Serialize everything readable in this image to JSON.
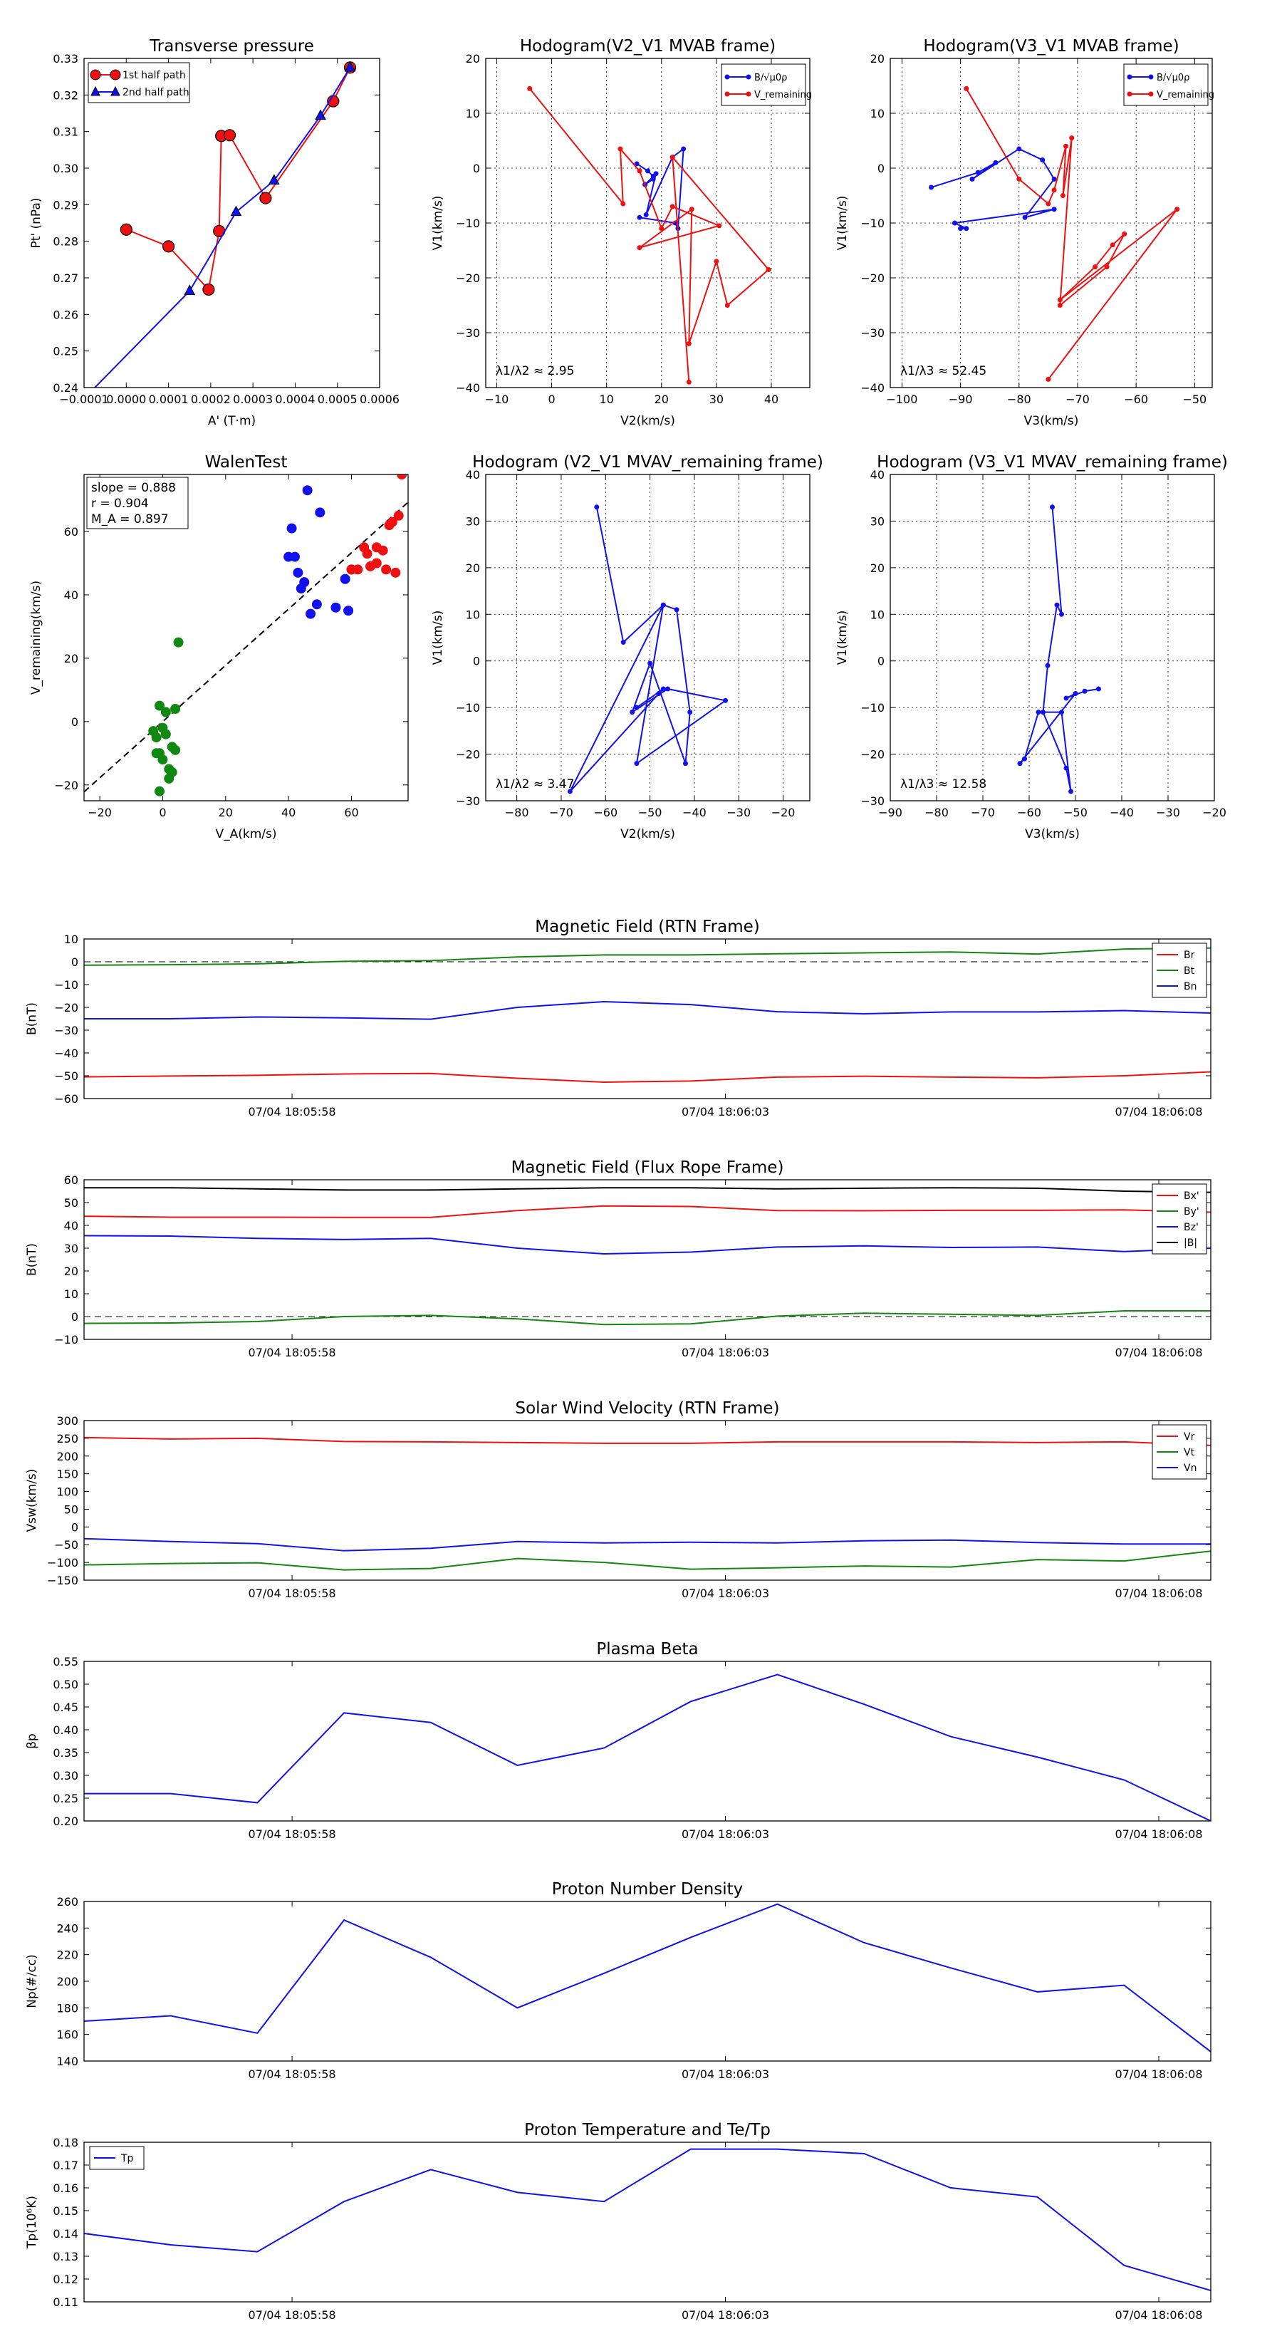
{
  "colors": {
    "red": "#ee1111",
    "blue": "#1111ee",
    "green": "#118811",
    "black": "#000000"
  },
  "time_ticks": [
    "07/04 18:05:58",
    "07/04 18:06:03",
    "07/04 18:06:08"
  ],
  "chart_data": [
    {
      "id": "pt",
      "type": "scatter",
      "title": "Transverse pressure",
      "xlabel": "A' (T·m)",
      "ylabel": "Pt' (nPa)",
      "xlim": [
        -0.0001,
        0.0006
      ],
      "ylim": [
        0.24,
        0.33
      ],
      "xticks": [
        -0.0001,
        0,
        0.0001,
        0.0002,
        0.0003,
        0.0004,
        0.0005,
        0.0006
      ],
      "xtick_labels": [
        "−0.0001",
        "0.0000",
        "0.0001",
        "0.0002",
        "0.0003",
        "0.0004",
        "0.0005",
        "0.0006"
      ],
      "yticks": [
        0.24,
        0.25,
        0.26,
        0.27,
        0.28,
        0.29,
        0.3,
        0.31,
        0.32,
        0.33
      ],
      "ytick_labels": [
        "0.24",
        "0.25",
        "0.26",
        "0.27",
        "0.28",
        "0.29",
        "0.30",
        "0.31",
        "0.32",
        "0.33"
      ],
      "legend": [
        "1st half path",
        "2nd half path"
      ],
      "series": [
        {
          "name": "1st half path",
          "color": "red",
          "marker": "circle",
          "x": [
            0.0,
            0.0001,
            0.000195,
            0.00022,
            0.000225,
            0.000245,
            0.00033,
            0.00049,
            0.00053
          ],
          "y": [
            0.2832,
            0.2786,
            0.2668,
            0.2828,
            0.3088,
            0.309,
            0.2918,
            0.3183,
            0.3275
          ]
        },
        {
          "name": "2nd half path",
          "color": "blue",
          "marker": "triangle",
          "x": [
            -0.0001,
            0.00015,
            0.00026,
            0.00035,
            0.00046,
            0.00053
          ],
          "y": [
            0.237,
            0.2664,
            0.288,
            0.2966,
            0.3143,
            0.3275
          ]
        }
      ]
    },
    {
      "id": "h1",
      "type": "line",
      "title": "Hodogram(V2_V1 MVAB frame)",
      "xlabel": "V2(km/s)",
      "ylabel": "V1(km/s)",
      "xlim": [
        -12,
        47
      ],
      "ylim": [
        -40,
        20
      ],
      "xticks": [
        -10,
        0,
        10,
        20,
        30,
        40
      ],
      "yticks": [
        -40,
        -30,
        -20,
        -10,
        0,
        10,
        20
      ],
      "legend": [
        "B/√μ0ρ",
        "V_remaining"
      ],
      "annotation": "λ1/λ2 ≈ 2.95",
      "series": [
        {
          "name": "B",
          "color": "blue",
          "x": [
            15.5,
            17.5,
            18.5,
            17,
            18.5,
            19,
            17.2,
            22,
            24,
            23,
            22.5,
            16
          ],
          "y": [
            0.8,
            -0.5,
            -1.5,
            -3,
            -2,
            -1,
            -8.5,
            2,
            3.5,
            -11,
            -10,
            -9
          ]
        },
        {
          "name": "V",
          "color": "red",
          "x": [
            -4,
            13,
            12.5,
            16,
            20,
            22,
            30.5,
            16,
            25.5,
            25,
            30,
            32,
            39.5,
            22,
            25
          ],
          "y": [
            14.5,
            -6.5,
            3.5,
            -0.5,
            -11,
            -7,
            -10.5,
            -14.5,
            -7.5,
            -32,
            -17,
            -25,
            -18.5,
            2,
            -39
          ]
        }
      ]
    },
    {
      "id": "h2",
      "type": "line",
      "title": "Hodogram(V3_V1 MVAB frame)",
      "xlabel": "V3(km/s)",
      "ylabel": "V1(km/s)",
      "xlim": [
        -102,
        -47
      ],
      "ylim": [
        -40,
        20
      ],
      "xticks": [
        -100,
        -90,
        -80,
        -70,
        -60,
        -50
      ],
      "yticks": [
        -40,
        -30,
        -20,
        -10,
        0,
        10,
        20
      ],
      "legend": [
        "B/√μ0ρ",
        "V_remaining"
      ],
      "annotation": "λ1/λ3 ≈ 52.45",
      "series": [
        {
          "name": "B",
          "color": "blue",
          "x": [
            -95,
            -87,
            -84,
            -88,
            -80,
            -76,
            -74,
            -79,
            -74,
            -91,
            -89,
            -90
          ],
          "y": [
            -3.5,
            -0.8,
            1,
            -2,
            3.5,
            1.5,
            -2,
            -9,
            -7.5,
            -10,
            -11,
            -11
          ]
        },
        {
          "name": "V",
          "color": "red",
          "x": [
            -89,
            -80,
            -75,
            -74,
            -72,
            -72.5,
            -71,
            -73,
            -65,
            -62,
            -64,
            -67,
            -73,
            -53,
            -75
          ],
          "y": [
            14.5,
            -2,
            -6.5,
            -4,
            4,
            -5,
            5.5,
            -25,
            -18,
            -12,
            -14,
            -18,
            -24,
            -7.5,
            -38.5
          ]
        }
      ]
    },
    {
      "id": "walen",
      "type": "scatter",
      "title": "WalenTest",
      "xlabel": "V_A(km/s)",
      "ylabel": "V_remaining(km/s)",
      "xlim": [
        -25,
        78
      ],
      "ylim": [
        -25,
        78
      ],
      "xticks": [
        -20,
        0,
        20,
        40,
        60
      ],
      "yticks": [
        -20,
        0,
        20,
        40,
        60
      ],
      "stats": {
        "slope": "slope = 0.888",
        "r": "r = 0.904",
        "ma": "M_A = 0.897"
      },
      "fit": {
        "slope": 0.888,
        "intercept": 0
      },
      "series": [
        {
          "name": "green",
          "color": "green",
          "x": [
            -1,
            0,
            1,
            3,
            5,
            4,
            -3,
            -2,
            -1,
            0,
            2,
            3,
            4,
            1,
            2,
            -1,
            -2
          ],
          "y": [
            5,
            -2,
            -4,
            -8,
            25,
            4,
            -3,
            -5,
            -10,
            -12,
            -15,
            -16,
            -9,
            3,
            -18,
            -22,
            -10
          ]
        },
        {
          "name": "blue",
          "color": "blue",
          "x": [
            41,
            43,
            45,
            46,
            47,
            49,
            50,
            55,
            58,
            59,
            40,
            42,
            44,
            60
          ],
          "y": [
            61,
            47,
            44,
            73,
            34,
            37,
            66,
            36,
            45,
            35,
            52,
            52,
            42,
            48
          ]
        },
        {
          "name": "red",
          "color": "red",
          "x": [
            60,
            64,
            66,
            68,
            70,
            72,
            73,
            74,
            75,
            76,
            62,
            65,
            68,
            71
          ],
          "y": [
            48,
            55,
            49,
            55,
            54,
            62,
            63,
            47,
            65,
            78,
            48,
            53,
            50,
            48
          ]
        }
      ]
    },
    {
      "id": "h3",
      "type": "line",
      "title": "Hodogram (V2_V1 MVAV_remaining frame)",
      "xlabel": "V2(km/s)",
      "ylabel": "V1(km/s)",
      "xlim": [
        -87,
        -14
      ],
      "ylim": [
        -30,
        40
      ],
      "xticks": [
        -80,
        -70,
        -60,
        -50,
        -40,
        -30,
        -20
      ],
      "yticks": [
        -30,
        -20,
        -10,
        0,
        10,
        20,
        30,
        40
      ],
      "annotation": "λ1/λ2 ≈ 3.47",
      "series": [
        {
          "name": "B",
          "color": "blue",
          "x": [
            -62,
            -56,
            -47,
            -44,
            -41,
            -42,
            -50,
            -54,
            -46,
            -33,
            -53,
            -47,
            -68,
            -48,
            -47,
            -53
          ],
          "y": [
            33,
            4,
            12,
            11,
            -11,
            -22,
            -0.5,
            -11,
            -6,
            -8.5,
            -22,
            12,
            -28,
            -7,
            -6,
            -10
          ]
        }
      ]
    },
    {
      "id": "h4",
      "type": "line",
      "title": "Hodogram (V3_V1 MVAV_remaining frame)",
      "xlabel": "V3(km/s)",
      "ylabel": "V1(km/s)",
      "xlim": [
        -90,
        -20
      ],
      "ylim": [
        -30,
        40
      ],
      "xticks": [
        -90,
        -80,
        -70,
        -60,
        -50,
        -40,
        -30,
        -20
      ],
      "yticks": [
        -30,
        -20,
        -10,
        0,
        10,
        20,
        30,
        40
      ],
      "annotation": "λ1/λ3 ≈ 12.58",
      "series": [
        {
          "name": "B",
          "color": "blue",
          "x": [
            -55,
            -53,
            -54,
            -56,
            -57,
            -52,
            -51,
            -53,
            -58,
            -61,
            -62,
            -50,
            -52,
            -48,
            -45
          ],
          "y": [
            33,
            10,
            12,
            -1,
            -11,
            -23,
            -28,
            -11,
            -11,
            -21,
            -22,
            -7,
            -8,
            -6.5,
            -6
          ]
        }
      ]
    },
    {
      "id": "bRTN",
      "type": "line",
      "title": "Magnetic Field (RTN Frame)",
      "ylabel": "B(nT)",
      "ylim": [
        -60,
        10
      ],
      "yticks": [
        -60,
        -50,
        -40,
        -30,
        -20,
        -10,
        0,
        10
      ],
      "zero_line": true,
      "legend_pos": "top-right",
      "series": [
        {
          "name": "Br",
          "color": "red",
          "values": [
            -50.5,
            -50.1,
            -49.8,
            -49.2,
            -49.0,
            -51.1,
            -52.8,
            -52.3,
            -50.6,
            -50.2,
            -50.6,
            -50.9,
            -50.0,
            -48.3
          ]
        },
        {
          "name": "Bt",
          "color": "green",
          "values": [
            -1.5,
            -1.3,
            -0.9,
            0.2,
            0.5,
            2.1,
            3.0,
            3.0,
            3.5,
            3.9,
            4.3,
            3.4,
            5.6,
            6.0
          ]
        },
        {
          "name": "Bn",
          "color": "blue",
          "values": [
            -25.0,
            -25.0,
            -24.2,
            -24.6,
            -25.2,
            -20.0,
            -17.5,
            -18.8,
            -21.9,
            -22.8,
            -22.0,
            -22.0,
            -21.4,
            -22.5
          ]
        }
      ]
    },
    {
      "id": "bFR",
      "type": "line",
      "title": "Magnetic Field (Flux Rope Frame)",
      "ylabel": "B(nT)",
      "ylim": [
        -10,
        60
      ],
      "yticks": [
        -10,
        0,
        10,
        20,
        30,
        40,
        50,
        60
      ],
      "zero_line": true,
      "legend_pos": "top-right",
      "series": [
        {
          "name": "Bx'",
          "color": "red",
          "values": [
            44,
            43.6,
            43.6,
            43.5,
            43.5,
            46.5,
            48.5,
            48.3,
            46.5,
            46.4,
            46.6,
            46.6,
            46.8,
            45.8
          ]
        },
        {
          "name": "By'",
          "color": "green",
          "values": [
            -3,
            -2.8,
            -2.2,
            0,
            0.5,
            -1,
            -3.5,
            -3.2,
            0.2,
            1.5,
            1,
            0.5,
            2.5,
            2.5
          ]
        },
        {
          "name": "Bz'",
          "color": "blue",
          "values": [
            35.5,
            35.3,
            34.3,
            33.8,
            34.3,
            30,
            27.5,
            28.3,
            30.5,
            31,
            30.3,
            30.5,
            28.5,
            30
          ]
        },
        {
          "name": "|B|",
          "color": "black",
          "values": [
            56.5,
            56.5,
            56,
            55.5,
            55.5,
            56,
            56.5,
            56.5,
            56,
            56.3,
            56.5,
            56.3,
            55,
            54.5
          ]
        }
      ]
    },
    {
      "id": "vsw",
      "type": "line",
      "title": "Solar Wind Velocity (RTN Frame)",
      "ylabel": "Vsw(km/s)",
      "ylim": [
        -150,
        300
      ],
      "yticks": [
        -150,
        -100,
        -50,
        0,
        50,
        100,
        150,
        200,
        250,
        300
      ],
      "legend_pos": "top-right",
      "series": [
        {
          "name": "Vr",
          "color": "red",
          "values": [
            252,
            248,
            250,
            241,
            240,
            238,
            236,
            236,
            240,
            240,
            240,
            238,
            240,
            230
          ]
        },
        {
          "name": "Vt",
          "color": "green",
          "values": [
            -107,
            -103,
            -101,
            -121,
            -117,
            -89,
            -100,
            -119,
            -115,
            -110,
            -113,
            -92,
            -96,
            -68
          ]
        },
        {
          "name": "Vn",
          "color": "blue",
          "values": [
            -33,
            -41,
            -47,
            -67,
            -60,
            -41,
            -45,
            -43,
            -45,
            -39,
            -37,
            -44,
            -48,
            -48
          ]
        }
      ]
    },
    {
      "id": "beta",
      "type": "line",
      "title": "Plasma Beta",
      "ylabel": "βp",
      "ylim": [
        0.2,
        0.55
      ],
      "yticks": [
        0.2,
        0.25,
        0.3,
        0.35,
        0.4,
        0.45,
        0.5,
        0.55
      ],
      "series": [
        {
          "name": "beta",
          "color": "blue",
          "values": [
            0.26,
            0.26,
            0.24,
            0.437,
            0.416,
            0.322,
            0.36,
            0.462,
            0.521,
            0.456,
            0.385,
            0.34,
            0.29,
            0.2
          ]
        }
      ]
    },
    {
      "id": "np",
      "type": "line",
      "title": "Proton Number Density",
      "ylabel": "Np(#/cc)",
      "ylim": [
        140,
        260
      ],
      "yticks": [
        140,
        160,
        180,
        200,
        220,
        240,
        260
      ],
      "series": [
        {
          "name": "Np",
          "color": "blue",
          "values": [
            170,
            174,
            161,
            246,
            218,
            180,
            206,
            233,
            258,
            229,
            210,
            192,
            197,
            147
          ]
        }
      ]
    },
    {
      "id": "tp",
      "type": "line",
      "title": "Proton Temperature and Te/Tp",
      "ylabel": "Tp(10⁶K)",
      "ylim": [
        0.11,
        0.18
      ],
      "yticks": [
        0.11,
        0.12,
        0.13,
        0.14,
        0.15,
        0.16,
        0.17,
        0.18
      ],
      "legend_pos": "top-left",
      "series": [
        {
          "name": "Tp",
          "color": "blue",
          "values": [
            0.14,
            0.135,
            0.132,
            0.154,
            0.168,
            0.158,
            0.154,
            0.177,
            0.177,
            0.175,
            0.16,
            0.156,
            0.126,
            0.115
          ]
        }
      ]
    }
  ]
}
